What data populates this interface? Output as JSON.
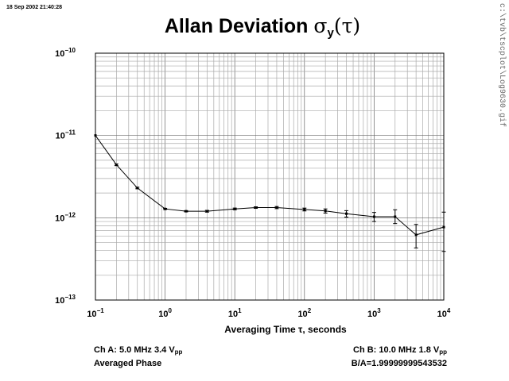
{
  "timestamp": "18 Sep 2002 21:40:28",
  "side_path": "c:\\tvb\\tscplot\\Log9630.gif",
  "title": {
    "prefix": "Allan Deviation ",
    "sigma": "σ",
    "sub": "y",
    "arg": "(τ)"
  },
  "footer": {
    "left_line1_main": "Ch A: 5.0 MHz 3.4 V",
    "left_line1_sub": "pp",
    "left_line2": "Averaged Phase",
    "right_line1_main": "Ch B: 10.0 MHz 1.8 V",
    "right_line1_sub": "pp",
    "right_line2": "B/A=1.99999999543532"
  },
  "chart_data": {
    "type": "line",
    "xscale": "log",
    "yscale": "log",
    "grid": true,
    "title": "Allan Deviation σy(τ)",
    "xlabel": "Averaging Time τ, seconds",
    "ylabel": "",
    "xlim": [
      0.1,
      10000
    ],
    "ylim": [
      1e-13,
      1e-10
    ],
    "x_tick_labels": [
      {
        "base": "10",
        "exp": "−1"
      },
      {
        "base": "10",
        "exp": "0"
      },
      {
        "base": "10",
        "exp": "1"
      },
      {
        "base": "10",
        "exp": "2"
      },
      {
        "base": "10",
        "exp": "3"
      },
      {
        "base": "10",
        "exp": "4"
      }
    ],
    "y_tick_labels": [
      {
        "base": "10",
        "exp": "−10"
      },
      {
        "base": "10",
        "exp": "−11"
      },
      {
        "base": "10",
        "exp": "−12"
      },
      {
        "base": "10",
        "exp": "−13"
      }
    ],
    "series": [
      {
        "x": [
          0.1,
          0.2,
          0.4,
          1,
          2,
          4,
          10,
          20,
          40,
          100,
          200,
          400,
          1000,
          2000,
          4000,
          10000
        ],
        "y": [
          1e-11,
          4.4e-12,
          2.3e-12,
          1.28e-12,
          1.2e-12,
          1.2e-12,
          1.28e-12,
          1.33e-12,
          1.33e-12,
          1.26e-12,
          1.21e-12,
          1.12e-12,
          1.03e-12,
          1.03e-12,
          6.2e-13,
          7.7e-13
        ],
        "y_err_low": [
          1e-11,
          4.3e-12,
          2.25e-12,
          1.26e-12,
          1.18e-12,
          1.17e-12,
          1.25e-12,
          1.3e-12,
          1.29e-12,
          1.21e-12,
          1.14e-12,
          1.02e-12,
          9e-13,
          8.5e-13,
          4.3e-13,
          3.9e-13
        ],
        "y_err_high": [
          1e-11,
          4.5e-12,
          2.35e-12,
          1.3e-12,
          1.22e-12,
          1.23e-12,
          1.31e-12,
          1.36e-12,
          1.37e-12,
          1.31e-12,
          1.28e-12,
          1.22e-12,
          1.16e-12,
          1.25e-12,
          8.3e-13,
          1.17e-12
        ]
      }
    ]
  }
}
